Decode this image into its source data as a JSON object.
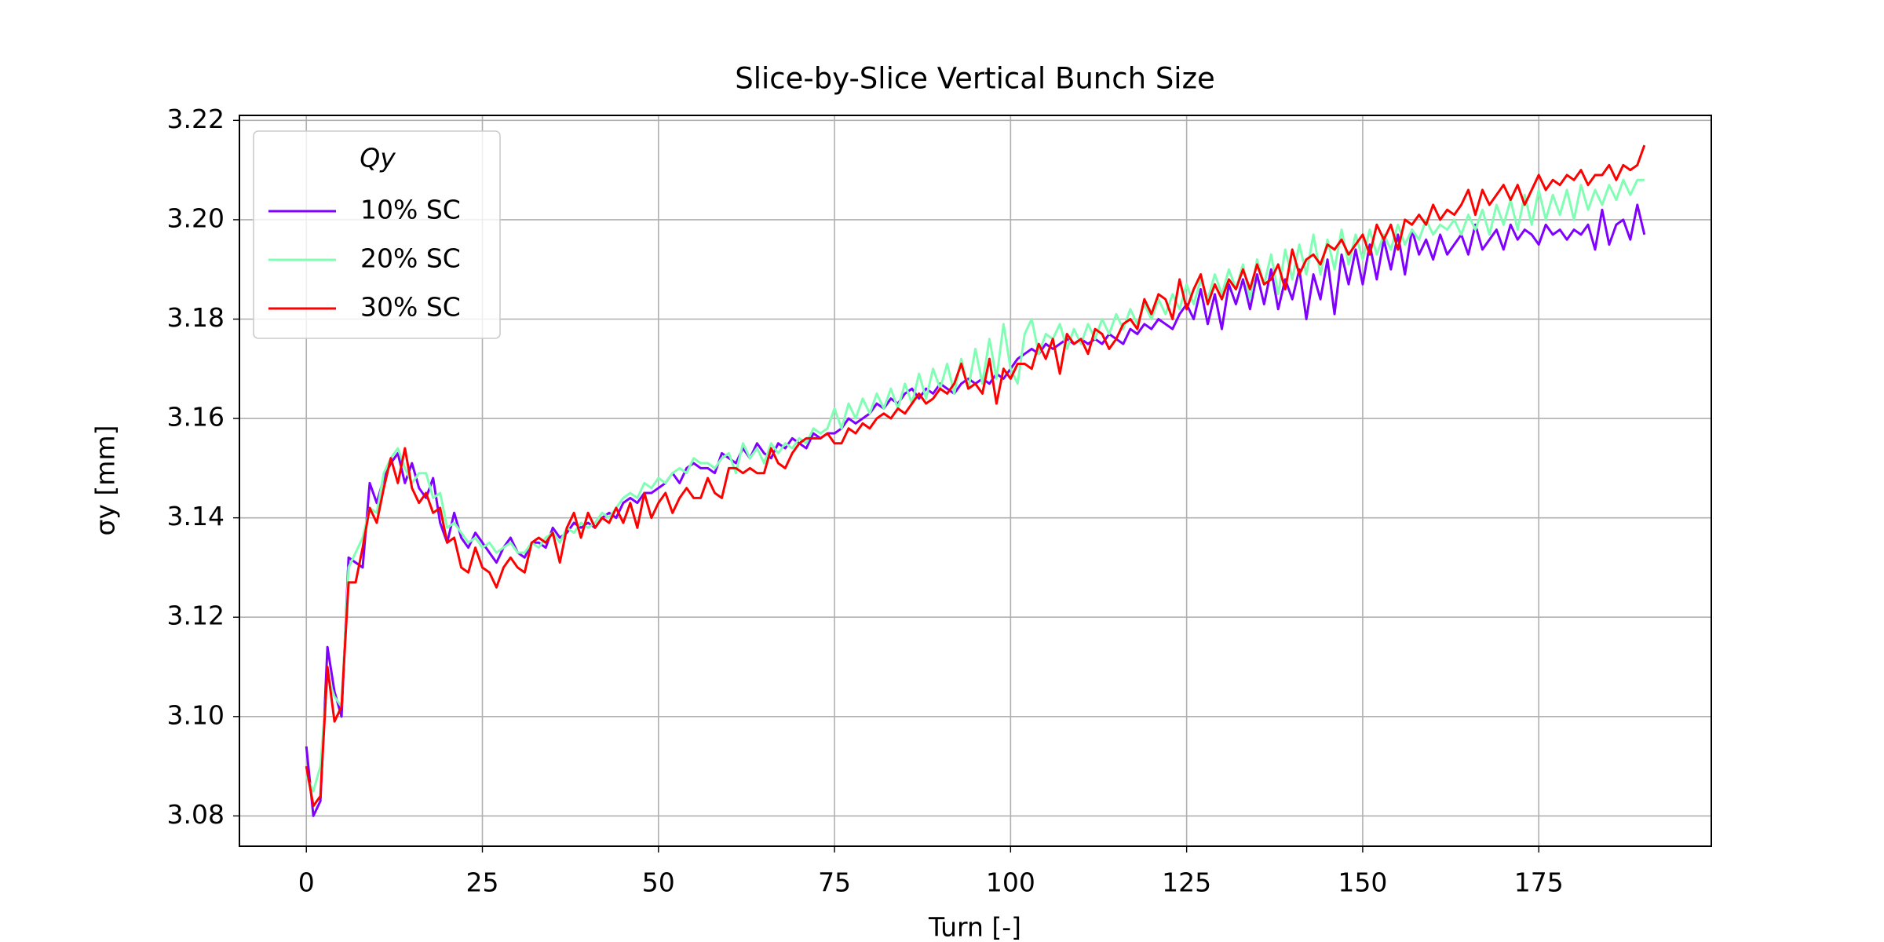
{
  "chart_data": {
    "type": "line",
    "title": "Slice-by-Slice Vertical Bunch Size",
    "xlabel": "Turn [-]",
    "ylabel": "σy [mm]",
    "legend_title": "Qy",
    "legend": "upper left",
    "grid": true,
    "xlim": [
      -9.5,
      199.5
    ],
    "ylim": [
      3.0739,
      3.221
    ],
    "xticks": [
      0,
      25,
      50,
      75,
      100,
      125,
      150,
      175
    ],
    "yticks": [
      3.08,
      {
        "value": 3.1,
        "label": "3.10"
      },
      3.12,
      3.14,
      3.16,
      3.18,
      {
        "value": 3.2,
        "label": "3.20"
      },
      3.22
    ],
    "x": [
      0,
      1,
      2,
      3,
      4,
      5,
      6,
      7,
      8,
      9,
      10,
      11,
      12,
      13,
      14,
      15,
      16,
      17,
      18,
      19,
      20,
      21,
      22,
      23,
      24,
      25,
      26,
      27,
      28,
      29,
      30,
      31,
      32,
      33,
      34,
      35,
      36,
      37,
      38,
      39,
      40,
      41,
      42,
      43,
      44,
      45,
      46,
      47,
      48,
      49,
      50,
      51,
      52,
      53,
      54,
      55,
      56,
      57,
      58,
      59,
      60,
      61,
      62,
      63,
      64,
      65,
      66,
      67,
      68,
      69,
      70,
      71,
      72,
      73,
      74,
      75,
      76,
      77,
      78,
      79,
      80,
      81,
      82,
      83,
      84,
      85,
      86,
      87,
      88,
      89,
      90,
      91,
      92,
      93,
      94,
      95,
      96,
      97,
      98,
      99,
      100,
      101,
      102,
      103,
      104,
      105,
      106,
      107,
      108,
      109,
      110,
      111,
      112,
      113,
      114,
      115,
      116,
      117,
      118,
      119,
      120,
      121,
      122,
      123,
      124,
      125,
      126,
      127,
      128,
      129,
      130,
      131,
      132,
      133,
      134,
      135,
      136,
      137,
      138,
      139,
      140,
      141,
      142,
      143,
      144,
      145,
      146,
      147,
      148,
      149,
      150,
      151,
      152,
      153,
      154,
      155,
      156,
      157,
      158,
      159,
      160,
      161,
      162,
      163,
      164,
      165,
      166,
      167,
      168,
      169,
      170,
      171,
      172,
      173,
      174,
      175,
      176,
      177,
      178,
      179,
      180,
      181,
      182,
      183,
      184,
      185,
      186,
      187,
      188,
      189,
      190
    ],
    "series": [
      {
        "name": "10% SC",
        "color": "#8000ff",
        "values": [
          3.094,
          3.08,
          3.083,
          3.114,
          3.105,
          3.1,
          3.132,
          3.131,
          3.13,
          3.147,
          3.143,
          3.148,
          3.151,
          3.153,
          3.147,
          3.151,
          3.146,
          3.144,
          3.148,
          3.139,
          3.135,
          3.141,
          3.136,
          3.134,
          3.137,
          3.135,
          3.133,
          3.131,
          3.134,
          3.136,
          3.133,
          3.132,
          3.135,
          3.135,
          3.134,
          3.138,
          3.136,
          3.137,
          3.139,
          3.138,
          3.139,
          3.138,
          3.14,
          3.141,
          3.14,
          3.143,
          3.144,
          3.143,
          3.145,
          3.145,
          3.146,
          3.147,
          3.149,
          3.147,
          3.15,
          3.151,
          3.15,
          3.15,
          3.149,
          3.153,
          3.152,
          3.151,
          3.154,
          3.152,
          3.155,
          3.153,
          3.152,
          3.155,
          3.154,
          3.156,
          3.155,
          3.154,
          3.157,
          3.156,
          3.157,
          3.157,
          3.158,
          3.16,
          3.159,
          3.16,
          3.161,
          3.163,
          3.162,
          3.164,
          3.163,
          3.165,
          3.166,
          3.164,
          3.166,
          3.165,
          3.167,
          3.166,
          3.165,
          3.167,
          3.168,
          3.167,
          3.168,
          3.167,
          3.169,
          3.168,
          3.17,
          3.172,
          3.173,
          3.174,
          3.173,
          3.175,
          3.174,
          3.175,
          3.176,
          3.175,
          3.176,
          3.175,
          3.176,
          3.175,
          3.177,
          3.176,
          3.175,
          3.178,
          3.177,
          3.179,
          3.178,
          3.18,
          3.179,
          3.178,
          3.181,
          3.183,
          3.18,
          3.186,
          3.179,
          3.185,
          3.178,
          3.187,
          3.183,
          3.188,
          3.182,
          3.189,
          3.183,
          3.19,
          3.182,
          3.188,
          3.184,
          3.19,
          3.18,
          3.189,
          3.184,
          3.192,
          3.181,
          3.193,
          3.187,
          3.194,
          3.187,
          3.195,
          3.188,
          3.196,
          3.19,
          3.197,
          3.189,
          3.198,
          3.193,
          3.196,
          3.192,
          3.197,
          3.193,
          3.195,
          3.197,
          3.193,
          3.199,
          3.194,
          3.196,
          3.198,
          3.194,
          3.199,
          3.196,
          3.198,
          3.197,
          3.195,
          3.199,
          3.197,
          3.198,
          3.196,
          3.198,
          3.197,
          3.199,
          3.194,
          3.202,
          3.195,
          3.199,
          3.2,
          3.196,
          3.203,
          3.197
        ]
      },
      {
        "name": "20% SC",
        "color": "#80ffb4",
        "values": [
          3.088,
          3.085,
          3.09,
          3.108,
          3.104,
          3.102,
          3.13,
          3.133,
          3.136,
          3.142,
          3.141,
          3.149,
          3.152,
          3.154,
          3.15,
          3.147,
          3.149,
          3.149,
          3.144,
          3.145,
          3.138,
          3.139,
          3.137,
          3.135,
          3.136,
          3.134,
          3.135,
          3.133,
          3.134,
          3.135,
          3.133,
          3.133,
          3.135,
          3.134,
          3.136,
          3.137,
          3.135,
          3.138,
          3.137,
          3.139,
          3.138,
          3.139,
          3.141,
          3.14,
          3.142,
          3.144,
          3.145,
          3.144,
          3.147,
          3.146,
          3.148,
          3.147,
          3.149,
          3.15,
          3.149,
          3.152,
          3.151,
          3.151,
          3.15,
          3.152,
          3.153,
          3.149,
          3.155,
          3.152,
          3.154,
          3.151,
          3.155,
          3.153,
          3.155,
          3.154,
          3.156,
          3.155,
          3.158,
          3.157,
          3.158,
          3.162,
          3.158,
          3.163,
          3.16,
          3.164,
          3.161,
          3.165,
          3.162,
          3.166,
          3.162,
          3.167,
          3.163,
          3.169,
          3.164,
          3.17,
          3.166,
          3.171,
          3.165,
          3.172,
          3.166,
          3.174,
          3.167,
          3.176,
          3.168,
          3.179,
          3.17,
          3.167,
          3.177,
          3.18,
          3.173,
          3.177,
          3.176,
          3.179,
          3.174,
          3.178,
          3.175,
          3.179,
          3.176,
          3.18,
          3.177,
          3.181,
          3.178,
          3.182,
          3.179,
          3.183,
          3.18,
          3.184,
          3.181,
          3.185,
          3.182,
          3.187,
          3.183,
          3.188,
          3.184,
          3.189,
          3.185,
          3.19,
          3.186,
          3.191,
          3.184,
          3.192,
          3.187,
          3.193,
          3.185,
          3.194,
          3.188,
          3.195,
          3.189,
          3.197,
          3.189,
          3.196,
          3.19,
          3.198,
          3.191,
          3.197,
          3.192,
          3.198,
          3.193,
          3.197,
          3.194,
          3.199,
          3.195,
          3.198,
          3.196,
          3.2,
          3.197,
          3.199,
          3.198,
          3.2,
          3.197,
          3.201,
          3.198,
          3.202,
          3.197,
          3.203,
          3.199,
          3.204,
          3.198,
          3.205,
          3.199,
          3.206,
          3.2,
          3.205,
          3.201,
          3.206,
          3.2,
          3.207,
          3.202,
          3.206,
          3.203,
          3.207,
          3.204,
          3.208,
          3.205,
          3.208,
          3.208
        ]
      },
      {
        "name": "30% SC",
        "color": "#ff0000",
        "values": [
          3.09,
          3.082,
          3.084,
          3.11,
          3.099,
          3.102,
          3.127,
          3.127,
          3.134,
          3.142,
          3.139,
          3.146,
          3.152,
          3.147,
          3.154,
          3.146,
          3.143,
          3.145,
          3.141,
          3.142,
          3.135,
          3.136,
          3.13,
          3.129,
          3.134,
          3.13,
          3.129,
          3.126,
          3.13,
          3.132,
          3.13,
          3.129,
          3.135,
          3.136,
          3.135,
          3.137,
          3.131,
          3.138,
          3.141,
          3.136,
          3.141,
          3.138,
          3.14,
          3.139,
          3.142,
          3.139,
          3.143,
          3.138,
          3.145,
          3.14,
          3.143,
          3.145,
          3.141,
          3.144,
          3.146,
          3.144,
          3.144,
          3.148,
          3.145,
          3.144,
          3.15,
          3.15,
          3.149,
          3.15,
          3.149,
          3.149,
          3.154,
          3.151,
          3.15,
          3.153,
          3.155,
          3.156,
          3.156,
          3.156,
          3.157,
          3.155,
          3.155,
          3.158,
          3.157,
          3.159,
          3.158,
          3.16,
          3.161,
          3.16,
          3.162,
          3.161,
          3.163,
          3.165,
          3.163,
          3.164,
          3.166,
          3.165,
          3.167,
          3.171,
          3.166,
          3.167,
          3.165,
          3.172,
          3.163,
          3.17,
          3.168,
          3.171,
          3.171,
          3.17,
          3.175,
          3.172,
          3.176,
          3.169,
          3.177,
          3.175,
          3.176,
          3.173,
          3.178,
          3.177,
          3.174,
          3.176,
          3.179,
          3.18,
          3.178,
          3.184,
          3.181,
          3.185,
          3.184,
          3.18,
          3.188,
          3.182,
          3.186,
          3.189,
          3.183,
          3.187,
          3.184,
          3.188,
          3.186,
          3.19,
          3.186,
          3.191,
          3.187,
          3.188,
          3.191,
          3.186,
          3.194,
          3.189,
          3.192,
          3.193,
          3.191,
          3.195,
          3.194,
          3.196,
          3.193,
          3.195,
          3.197,
          3.193,
          3.199,
          3.196,
          3.199,
          3.194,
          3.2,
          3.199,
          3.201,
          3.199,
          3.203,
          3.2,
          3.202,
          3.201,
          3.203,
          3.206,
          3.201,
          3.206,
          3.203,
          3.205,
          3.207,
          3.204,
          3.207,
          3.203,
          3.206,
          3.209,
          3.206,
          3.208,
          3.207,
          3.209,
          3.208,
          3.21,
          3.207,
          3.209,
          3.209,
          3.211,
          3.208,
          3.211,
          3.21,
          3.211,
          3.215
        ]
      }
    ]
  }
}
